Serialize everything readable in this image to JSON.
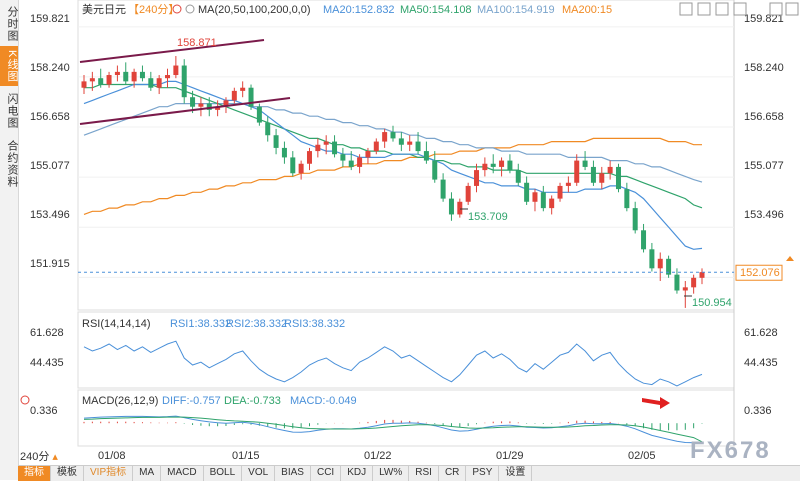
{
  "sidebar": {
    "tabs": [
      {
        "label": "分时图",
        "active": false
      },
      {
        "label": "K线图",
        "active": true
      },
      {
        "label": "闪电图",
        "active": false
      },
      {
        "label": "合约资料",
        "active": false
      }
    ]
  },
  "header": {
    "symbol": "美元日元",
    "period": "【240分】",
    "ma_label": "MA(20,50,100,200,0,0)",
    "ma20": "MA20:152.832",
    "ma50": "MA50:154.108",
    "ma100": "MA100:154.919",
    "ma200": "MA200:15"
  },
  "rsi_header": {
    "label": "RSI(14,14,14)",
    "rsi1": "RSI1:38.332",
    "rsi2": "RSI2:38.332",
    "rsi3": "RSI3:38.332"
  },
  "macd_header": {
    "label": "MACD(26,12,9)",
    "diff": "DIFF:-0.757",
    "dea": "DEA:-0.733",
    "macd": "MACD:-0.049"
  },
  "period_selector": "240分",
  "bottom_tabs": [
    "指标",
    "模板",
    "VIP指标",
    "MA",
    "MACD",
    "BOLL",
    "VOL",
    "BIAS",
    "CCI",
    "KDJ",
    "LW%",
    "RSI",
    "CR",
    "PSY",
    "设置"
  ],
  "watermark": "FX678",
  "colors": {
    "up": "#e0433a",
    "down": "#2fa36b",
    "ma20": "#4a90d9",
    "ma50": "#2fa36b",
    "ma100": "#7aa4cc",
    "ma200": "#f08a24",
    "channel": "#7a1a4a",
    "rsi": "#4a90d9",
    "dea": "#2fa36b",
    "accent": "#f08a24"
  },
  "chart_data": {
    "type": "candlestick",
    "y_ticks": [
      "159.821",
      "158.240",
      "156.658",
      "155.077",
      "153.496",
      "151.915"
    ],
    "ylim": [
      151.2,
      160.1
    ],
    "x_ticks": [
      "01/08",
      "01/15",
      "01/22",
      "01/29",
      "02/05"
    ],
    "current_price": "152.076",
    "current_value": 152.076,
    "annotations": {
      "high": "158.871",
      "low1": "153.709",
      "low2": "150.954"
    },
    "candles": [
      [
        157.9,
        158.3,
        157.7,
        158.1
      ],
      [
        158.1,
        158.4,
        157.8,
        158.2
      ],
      [
        158.2,
        158.5,
        157.9,
        158.0
      ],
      [
        158.0,
        158.4,
        157.9,
        158.3
      ],
      [
        158.3,
        158.6,
        158.1,
        158.4
      ],
      [
        158.4,
        158.7,
        158.0,
        158.1
      ],
      [
        158.1,
        158.5,
        157.9,
        158.4
      ],
      [
        158.4,
        158.6,
        158.1,
        158.2
      ],
      [
        158.2,
        158.4,
        157.8,
        157.9
      ],
      [
        157.9,
        158.3,
        157.7,
        158.2
      ],
      [
        158.2,
        158.5,
        157.9,
        158.3
      ],
      [
        158.3,
        158.9,
        158.2,
        158.6
      ],
      [
        158.6,
        158.8,
        157.4,
        157.6
      ],
      [
        157.6,
        157.8,
        157.1,
        157.3
      ],
      [
        157.3,
        157.6,
        157.0,
        157.4
      ],
      [
        157.4,
        157.6,
        157.0,
        157.2
      ],
      [
        157.2,
        157.5,
        157.0,
        157.3
      ],
      [
        157.3,
        157.6,
        157.1,
        157.5
      ],
      [
        157.5,
        157.9,
        157.4,
        157.8
      ],
      [
        157.8,
        158.1,
        157.6,
        157.9
      ],
      [
        157.9,
        158.0,
        157.2,
        157.3
      ],
      [
        157.3,
        157.4,
        156.7,
        156.8
      ],
      [
        156.8,
        157.0,
        156.2,
        156.4
      ],
      [
        156.4,
        156.6,
        155.8,
        156.0
      ],
      [
        156.0,
        156.2,
        155.5,
        155.7
      ],
      [
        155.7,
        155.9,
        155.1,
        155.2
      ],
      [
        155.2,
        155.6,
        155.0,
        155.5
      ],
      [
        155.5,
        156.0,
        155.3,
        155.9
      ],
      [
        155.9,
        156.3,
        155.7,
        156.1
      ],
      [
        156.1,
        156.4,
        155.8,
        156.2
      ],
      [
        156.2,
        156.4,
        155.7,
        155.8
      ],
      [
        155.8,
        156.0,
        155.4,
        155.6
      ],
      [
        155.6,
        155.9,
        155.3,
        155.4
      ],
      [
        155.4,
        155.8,
        155.2,
        155.7
      ],
      [
        155.7,
        156.0,
        155.5,
        155.9
      ],
      [
        155.9,
        156.3,
        155.8,
        156.2
      ],
      [
        156.2,
        156.6,
        156.0,
        156.5
      ],
      [
        156.5,
        156.7,
        156.2,
        156.3
      ],
      [
        156.3,
        156.5,
        155.9,
        156.1
      ],
      [
        156.1,
        156.4,
        155.9,
        156.2
      ],
      [
        156.2,
        156.5,
        155.8,
        155.9
      ],
      [
        155.9,
        156.2,
        155.5,
        155.6
      ],
      [
        155.6,
        155.9,
        154.9,
        155.0
      ],
      [
        155.0,
        155.2,
        154.3,
        154.4
      ],
      [
        154.4,
        154.6,
        153.7,
        153.9
      ],
      [
        153.9,
        154.4,
        153.8,
        154.3
      ],
      [
        154.3,
        154.9,
        154.2,
        154.8
      ],
      [
        154.8,
        155.5,
        154.6,
        155.3
      ],
      [
        155.3,
        155.7,
        155.1,
        155.5
      ],
      [
        155.5,
        155.8,
        155.2,
        155.4
      ],
      [
        155.4,
        155.7,
        155.1,
        155.6
      ],
      [
        155.6,
        155.8,
        155.2,
        155.3
      ],
      [
        155.3,
        155.5,
        154.8,
        154.9
      ],
      [
        154.9,
        155.1,
        154.2,
        154.3
      ],
      [
        154.3,
        154.7,
        154.0,
        154.6
      ],
      [
        154.6,
        154.8,
        154.0,
        154.1
      ],
      [
        154.1,
        154.5,
        153.9,
        154.4
      ],
      [
        154.4,
        154.9,
        154.3,
        154.8
      ],
      [
        154.8,
        155.1,
        154.6,
        154.9
      ],
      [
        154.9,
        155.8,
        154.8,
        155.6
      ],
      [
        155.6,
        155.9,
        155.3,
        155.4
      ],
      [
        155.4,
        155.6,
        154.8,
        154.9
      ],
      [
        154.9,
        155.4,
        154.7,
        155.2
      ],
      [
        155.2,
        155.6,
        155.0,
        155.4
      ],
      [
        155.4,
        155.5,
        154.6,
        154.7
      ],
      [
        154.7,
        154.9,
        154.0,
        154.1
      ],
      [
        154.1,
        154.3,
        153.3,
        153.4
      ],
      [
        153.4,
        153.6,
        152.7,
        152.8
      ],
      [
        152.8,
        153.0,
        152.1,
        152.2
      ],
      [
        152.2,
        152.7,
        151.8,
        152.5
      ],
      [
        152.5,
        152.6,
        151.9,
        152.0
      ],
      [
        152.0,
        152.2,
        151.4,
        151.5
      ],
      [
        151.5,
        151.8,
        150.95,
        151.6
      ],
      [
        151.6,
        152.0,
        151.4,
        151.9
      ],
      [
        151.9,
        152.2,
        151.7,
        152.08
      ]
    ],
    "ma20": [
      157.4,
      157.5,
      157.6,
      157.7,
      157.8,
      157.9,
      158.0,
      158.0,
      158.0,
      158.0,
      158.1,
      158.1,
      158.0,
      157.9,
      157.8,
      157.7,
      157.6,
      157.5,
      157.5,
      157.4,
      157.3,
      157.2,
      157.0,
      156.8,
      156.6,
      156.4,
      156.2,
      156.1,
      156.0,
      155.9,
      155.9,
      155.8,
      155.8,
      155.7,
      155.7,
      155.7,
      155.7,
      155.8,
      155.8,
      155.8,
      155.8,
      155.7,
      155.6,
      155.5,
      155.3,
      155.2,
      155.1,
      155.0,
      154.9,
      154.9,
      154.8,
      154.8,
      154.8,
      154.7,
      154.7,
      154.6,
      154.6,
      154.6,
      154.6,
      154.6,
      154.7,
      154.7,
      154.7,
      154.8,
      154.8,
      154.7,
      154.6,
      154.4,
      154.1,
      153.8,
      153.5,
      153.2,
      152.9,
      152.8,
      152.83
    ],
    "ma50": [
      157.9,
      157.9,
      158.0,
      158.0,
      158.0,
      158.0,
      158.0,
      158.0,
      158.0,
      157.9,
      157.9,
      157.9,
      157.8,
      157.7,
      157.6,
      157.5,
      157.4,
      157.3,
      157.2,
      157.1,
      157.0,
      156.9,
      156.8,
      156.7,
      156.6,
      156.5,
      156.4,
      156.3,
      156.3,
      156.2,
      156.1,
      156.1,
      156.0,
      156.0,
      155.9,
      155.9,
      155.9,
      155.8,
      155.8,
      155.8,
      155.7,
      155.7,
      155.6,
      155.6,
      155.5,
      155.5,
      155.4,
      155.4,
      155.4,
      155.3,
      155.3,
      155.3,
      155.3,
      155.2,
      155.2,
      155.2,
      155.2,
      155.2,
      155.2,
      155.2,
      155.2,
      155.2,
      155.2,
      155.2,
      155.1,
      155.1,
      155.0,
      154.9,
      154.8,
      154.7,
      154.6,
      154.5,
      154.4,
      154.2,
      154.11
    ],
    "ma100": [
      156.4,
      156.5,
      156.6,
      156.7,
      156.8,
      156.9,
      157.0,
      157.1,
      157.2,
      157.3,
      157.3,
      157.4,
      157.4,
      157.4,
      157.4,
      157.4,
      157.4,
      157.4,
      157.4,
      157.4,
      157.3,
      157.3,
      157.3,
      157.2,
      157.2,
      157.1,
      157.1,
      157.0,
      157.0,
      156.9,
      156.9,
      156.8,
      156.8,
      156.7,
      156.7,
      156.6,
      156.6,
      156.5,
      156.5,
      156.4,
      156.4,
      156.3,
      156.3,
      156.2,
      156.2,
      156.1,
      156.1,
      156.0,
      156.0,
      156.0,
      155.9,
      155.9,
      155.9,
      155.8,
      155.8,
      155.8,
      155.8,
      155.8,
      155.7,
      155.7,
      155.7,
      155.7,
      155.7,
      155.6,
      155.6,
      155.6,
      155.5,
      155.5,
      155.4,
      155.4,
      155.3,
      155.2,
      155.1,
      155.0,
      154.92
    ],
    "ma200": [
      153.9,
      154.0,
      154.0,
      154.1,
      154.1,
      154.2,
      154.2,
      154.3,
      154.3,
      154.4,
      154.4,
      154.5,
      154.5,
      154.6,
      154.6,
      154.7,
      154.7,
      154.8,
      154.8,
      154.9,
      154.9,
      155.0,
      155.0,
      155.0,
      155.1,
      155.1,
      155.2,
      155.2,
      155.3,
      155.3,
      155.3,
      155.4,
      155.4,
      155.5,
      155.5,
      155.5,
      155.6,
      155.6,
      155.6,
      155.7,
      155.7,
      155.7,
      155.8,
      155.8,
      155.8,
      155.9,
      155.9,
      155.9,
      156.0,
      156.0,
      156.0,
      156.0,
      156.1,
      156.1,
      156.1,
      156.1,
      156.2,
      156.2,
      156.2,
      156.2,
      156.2,
      156.3,
      156.3,
      156.3,
      156.3,
      156.3,
      156.3,
      156.3,
      156.3,
      156.3,
      156.2,
      156.2,
      156.2,
      156.1,
      156.1
    ],
    "rsi": {
      "y_ticks": [
        "61.628",
        "44.435"
      ],
      "ylim": [
        30,
        70
      ],
      "values": [
        58,
        55,
        57,
        60,
        56,
        59,
        55,
        58,
        54,
        57,
        60,
        62,
        50,
        45,
        47,
        43,
        46,
        49,
        53,
        55,
        48,
        42,
        38,
        35,
        33,
        36,
        40,
        45,
        48,
        50,
        46,
        43,
        41,
        47,
        50,
        54,
        58,
        55,
        50,
        52,
        48,
        44,
        40,
        36,
        33,
        38,
        45,
        52,
        55,
        50,
        53,
        49,
        43,
        40,
        46,
        42,
        47,
        52,
        54,
        60,
        55,
        48,
        52,
        54,
        46,
        40,
        35,
        32,
        31,
        35,
        33,
        30,
        33,
        36,
        38.3
      ]
    },
    "macd": {
      "y_ticks": [
        "0.336"
      ],
      "ylim": [
        -0.9,
        0.6
      ],
      "diff": [
        0.2,
        0.22,
        0.24,
        0.25,
        0.26,
        0.27,
        0.27,
        0.27,
        0.26,
        0.25,
        0.26,
        0.28,
        0.22,
        0.15,
        0.1,
        0.05,
        0.02,
        0.0,
        0.02,
        0.04,
        0.0,
        -0.06,
        -0.14,
        -0.22,
        -0.29,
        -0.35,
        -0.36,
        -0.33,
        -0.28,
        -0.24,
        -0.22,
        -0.22,
        -0.23,
        -0.2,
        -0.16,
        -0.1,
        -0.03,
        0.0,
        0.0,
        0.01,
        0.0,
        -0.04,
        -0.1,
        -0.18,
        -0.27,
        -0.31,
        -0.3,
        -0.24,
        -0.17,
        -0.12,
        -0.09,
        -0.08,
        -0.11,
        -0.16,
        -0.17,
        -0.19,
        -0.18,
        -0.14,
        -0.1,
        -0.03,
        0.0,
        -0.02,
        -0.02,
        -0.01,
        -0.05,
        -0.12,
        -0.22,
        -0.35,
        -0.48,
        -0.56,
        -0.64,
        -0.71,
        -0.76,
        -0.77,
        -0.757
      ],
      "dea": [
        0.15,
        0.16,
        0.18,
        0.19,
        0.2,
        0.21,
        0.22,
        0.23,
        0.23,
        0.23,
        0.24,
        0.24,
        0.24,
        0.22,
        0.2,
        0.17,
        0.14,
        0.11,
        0.09,
        0.08,
        0.06,
        0.04,
        0.0,
        -0.04,
        -0.09,
        -0.14,
        -0.18,
        -0.21,
        -0.22,
        -0.23,
        -0.23,
        -0.23,
        -0.23,
        -0.22,
        -0.21,
        -0.19,
        -0.16,
        -0.13,
        -0.1,
        -0.08,
        -0.06,
        -0.06,
        -0.07,
        -0.09,
        -0.13,
        -0.16,
        -0.19,
        -0.2,
        -0.19,
        -0.18,
        -0.16,
        -0.15,
        -0.14,
        -0.14,
        -0.15,
        -0.16,
        -0.16,
        -0.16,
        -0.15,
        -0.13,
        -0.1,
        -0.09,
        -0.07,
        -0.06,
        -0.06,
        -0.07,
        -0.1,
        -0.15,
        -0.22,
        -0.29,
        -0.36,
        -0.43,
        -0.5,
        -0.57,
        -0.733
      ]
    }
  }
}
